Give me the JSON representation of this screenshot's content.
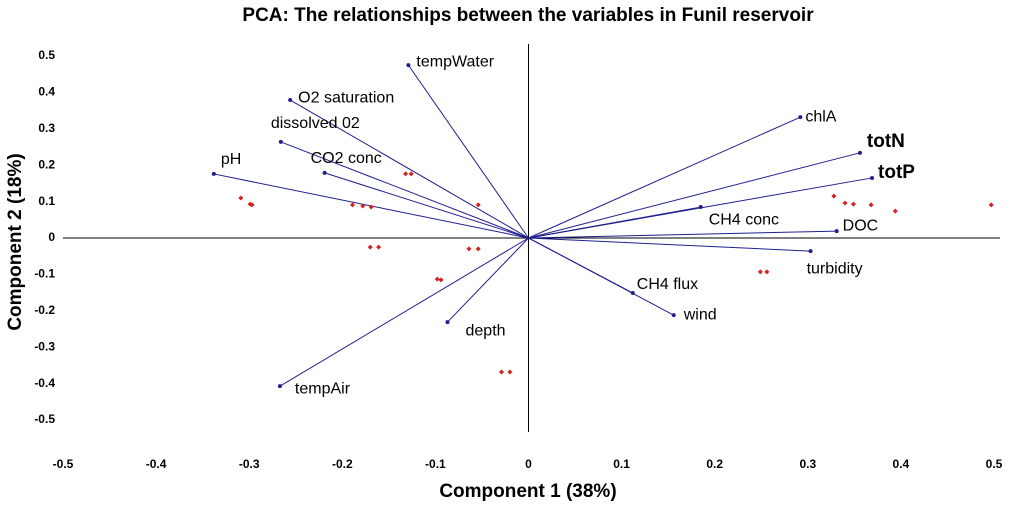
{
  "chart_data": {
    "type": "biplot",
    "title": "PCA: The relationships between the variables in Funil reservoir",
    "xlabel": "Component 1 (38%)",
    "ylabel": "Component 2 (18%)",
    "xlim": [
      -0.5,
      0.5
    ],
    "ylim": [
      -0.5,
      0.5
    ],
    "xticks": [
      -0.5,
      -0.4,
      -0.3,
      -0.2,
      -0.1,
      0,
      0.1,
      0.2,
      0.3,
      0.4,
      0.5
    ],
    "yticks": [
      -0.5,
      -0.4,
      -0.3,
      -0.2,
      -0.1,
      0,
      0.1,
      0.2,
      0.3,
      0.4,
      0.5
    ],
    "loadings": {
      "color": "#1f1f8f",
      "names": [
        "tempWater",
        "O2 saturation",
        "dissolved 02",
        "CO2 conc",
        "pH",
        "chlA",
        "totN",
        "totP",
        "CH4 conc",
        "DOC",
        "turbidity",
        "CH4 flux",
        "wind",
        "depth",
        "tempAir"
      ],
      "x": [
        -0.129,
        -0.256,
        -0.266,
        -0.219,
        -0.338,
        0.292,
        0.356,
        0.369,
        0.185,
        0.331,
        0.303,
        0.112,
        0.156,
        -0.087,
        -0.267
      ],
      "y": [
        0.475,
        0.379,
        0.264,
        0.179,
        0.176,
        0.332,
        0.234,
        0.165,
        0.085,
        0.019,
        -0.036,
        -0.151,
        -0.212,
        -0.231,
        -0.407
      ]
    },
    "scores": {
      "color": "#d42020",
      "x": [
        -0.309,
        -0.299,
        -0.297,
        -0.189,
        -0.178,
        -0.169,
        -0.17,
        -0.161,
        -0.132,
        -0.126,
        -0.098,
        -0.094,
        -0.064,
        -0.054,
        -0.054,
        -0.029,
        -0.02,
        0.249,
        0.256,
        0.328,
        0.34,
        0.349,
        0.368,
        0.394,
        0.497
      ],
      "y": [
        0.11,
        0.093,
        0.091,
        0.091,
        0.088,
        0.085,
        -0.025,
        -0.025,
        0.176,
        0.176,
        -0.113,
        -0.115,
        -0.03,
        -0.03,
        0.091,
        -0.368,
        -0.368,
        -0.093,
        -0.093,
        0.115,
        0.096,
        0.093,
        0.091,
        0.074,
        0.091
      ]
    }
  }
}
